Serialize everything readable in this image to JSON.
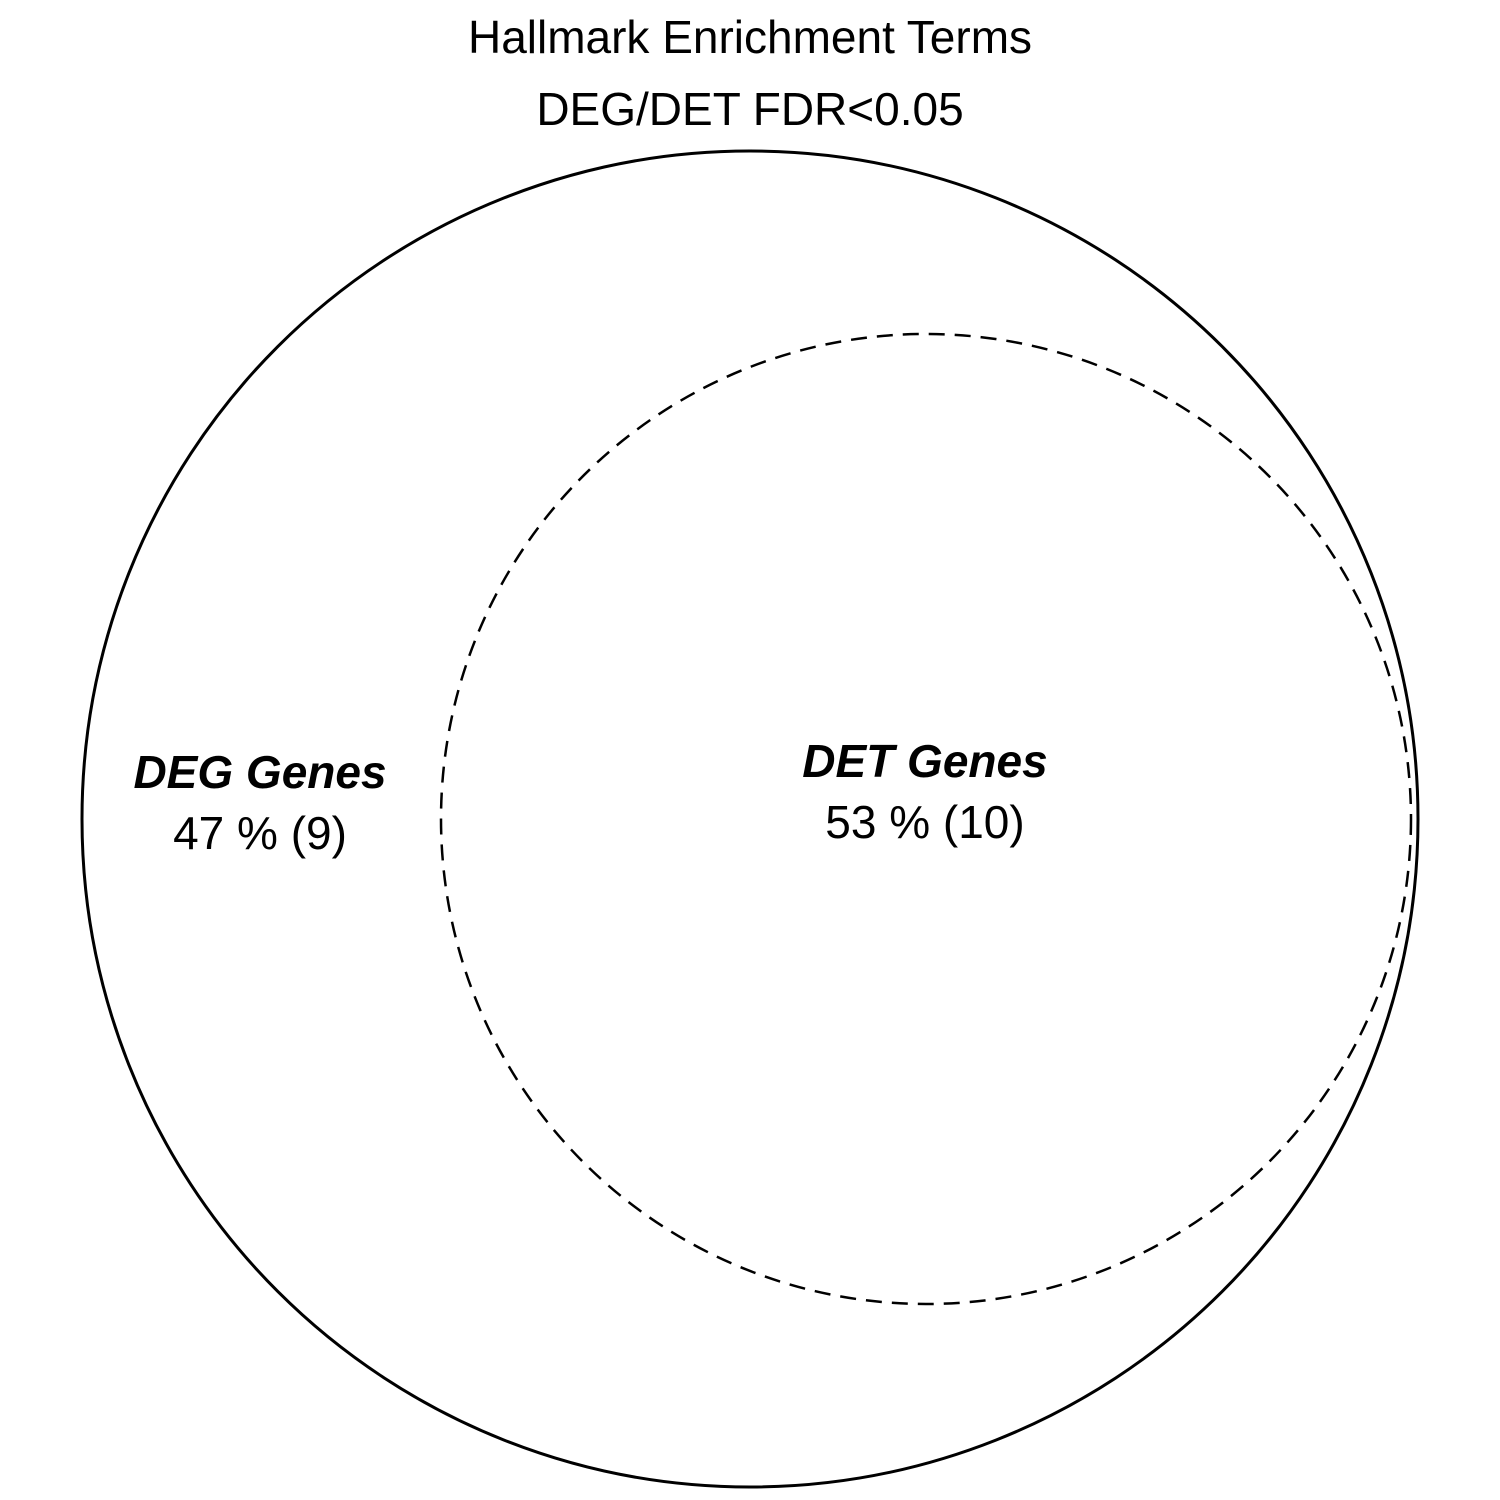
{
  "title": {
    "line1": "Hallmark Enrichment Terms",
    "line2": "DEG/DET FDR<0.05"
  },
  "sets": [
    {
      "name": "DEG Genes",
      "value": "47 % (9)",
      "percent": 47,
      "count": 9,
      "line_style": "solid"
    },
    {
      "name": "DET Genes",
      "value": "53 % (10)",
      "percent": 53,
      "count": 10,
      "line_style": "dashed"
    }
  ],
  "colors": {
    "stroke": "#000000",
    "fill": "#ffffff"
  }
}
